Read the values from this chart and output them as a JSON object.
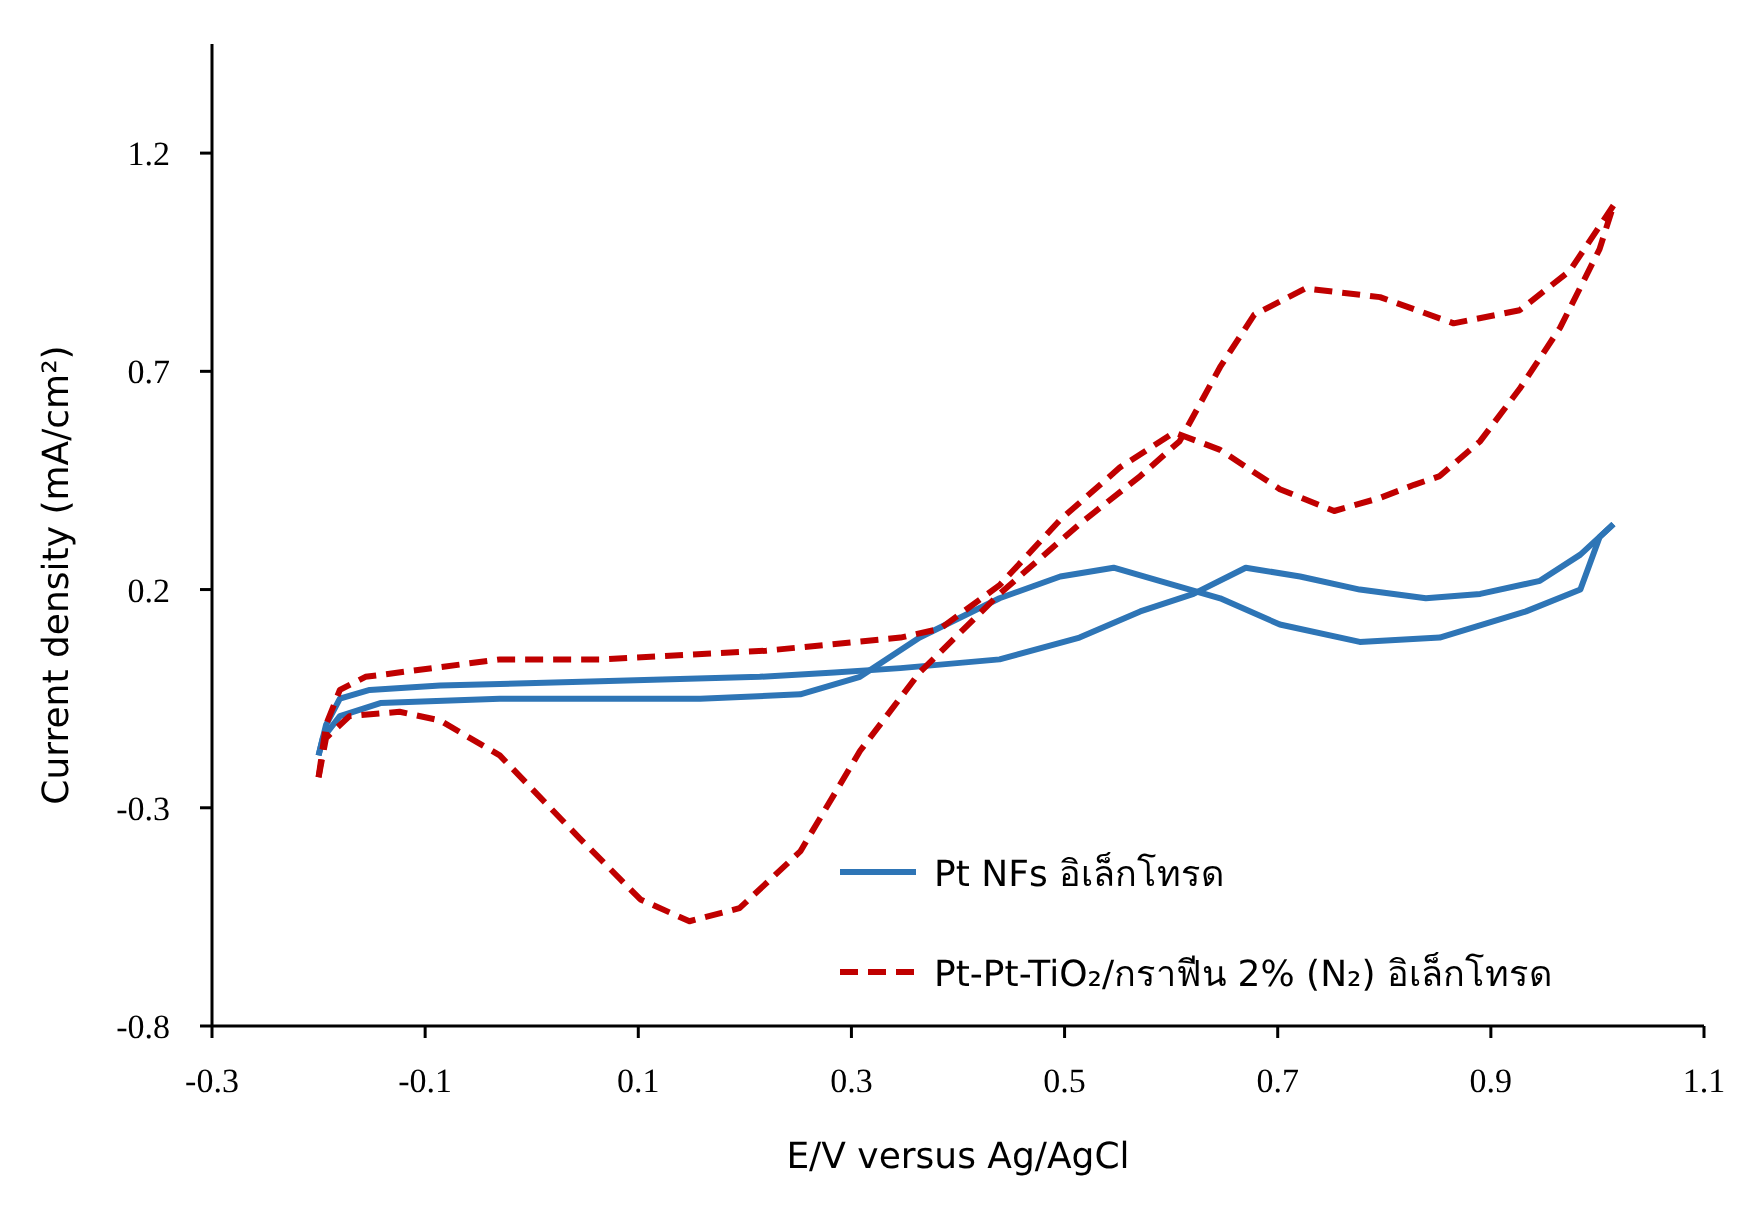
{
  "chart_data": {
    "type": "line",
    "xlabel": "E/V versus Ag/AgCl",
    "ylabel": "Current density (mA/cm²)",
    "xlim": [
      -0.3,
      1.1
    ],
    "xticks": [
      -0.3,
      -0.1,
      0.1,
      0.3,
      0.5,
      0.7,
      0.9,
      1.1
    ],
    "ylim": [
      -0.8,
      1.45
    ],
    "yticks": [
      -0.8,
      -0.3,
      0.2,
      0.7,
      1.2
    ],
    "grid": false,
    "legend": "bottom right",
    "marker": "none",
    "series": [
      {
        "name": "Pt NFs อิเล็กโทรด",
        "color": "#2e75b6",
        "line_style": "solid",
        "x": [
          -0.2,
          -0.193,
          -0.18,
          -0.152,
          -0.086,
          0.064,
          0.214,
          0.284,
          0.346,
          0.439,
          0.514,
          0.571,
          0.621,
          0.67,
          0.721,
          0.777,
          0.839,
          0.89,
          0.946,
          0.984,
          1.015
        ],
        "values": [
          -0.18,
          -0.11,
          -0.05,
          -0.03,
          -0.02,
          -0.01,
          0.0,
          0.01,
          0.02,
          0.04,
          0.09,
          0.15,
          0.19,
          0.25,
          0.23,
          0.2,
          0.18,
          0.19,
          0.22,
          0.28,
          0.35
        ]
      },
      {
        "color": "#2e75b6",
        "line_style": "solid",
        "x": [
          -0.2,
          -0.196,
          -0.18,
          -0.142,
          -0.03,
          0.158,
          0.252,
          0.308,
          0.364,
          0.439,
          0.496,
          0.546,
          0.589,
          0.646,
          0.702,
          0.777,
          0.852,
          0.933,
          0.984,
          1.002,
          1.015
        ],
        "values": [
          -0.18,
          -0.14,
          -0.09,
          -0.06,
          -0.05,
          -0.05,
          -0.04,
          0.0,
          0.09,
          0.18,
          0.23,
          0.25,
          0.22,
          0.18,
          0.12,
          0.08,
          0.09,
          0.15,
          0.2,
          0.32,
          0.35
        ]
      },
      {
        "name": "Pt-Pt-TiO₂/กราฟีน 2% (N₂) อิเล็กโทรด",
        "color": "#c00000",
        "line_style": "dashed",
        "x": [
          -0.2,
          -0.193,
          -0.171,
          -0.124,
          -0.086,
          -0.03,
          0.045,
          0.102,
          0.148,
          0.195,
          0.252,
          0.308,
          0.364,
          0.439,
          0.514,
          0.571,
          0.608,
          0.646,
          0.678,
          0.726,
          0.796,
          0.865,
          0.927,
          0.974,
          1.015
        ],
        "values": [
          -0.23,
          -0.14,
          -0.09,
          -0.08,
          -0.1,
          -0.18,
          -0.37,
          -0.51,
          -0.56,
          -0.53,
          -0.4,
          -0.17,
          0.01,
          0.19,
          0.35,
          0.46,
          0.54,
          0.71,
          0.83,
          0.89,
          0.87,
          0.81,
          0.84,
          0.93,
          1.08
        ]
      },
      {
        "color": "#c00000",
        "line_style": "dashed",
        "x": [
          -0.2,
          -0.193,
          -0.18,
          -0.156,
          -0.03,
          0.064,
          0.22,
          0.346,
          0.383,
          0.439,
          0.496,
          0.552,
          0.603,
          0.646,
          0.702,
          0.753,
          0.796,
          0.828,
          0.852,
          0.89,
          0.927,
          0.965,
          1.002,
          1.015
        ],
        "values": [
          -0.23,
          -0.11,
          -0.03,
          0.0,
          0.04,
          0.04,
          0.06,
          0.09,
          0.11,
          0.21,
          0.36,
          0.48,
          0.56,
          0.52,
          0.43,
          0.38,
          0.41,
          0.44,
          0.46,
          0.54,
          0.66,
          0.8,
          0.98,
          1.08
        ]
      }
    ]
  }
}
